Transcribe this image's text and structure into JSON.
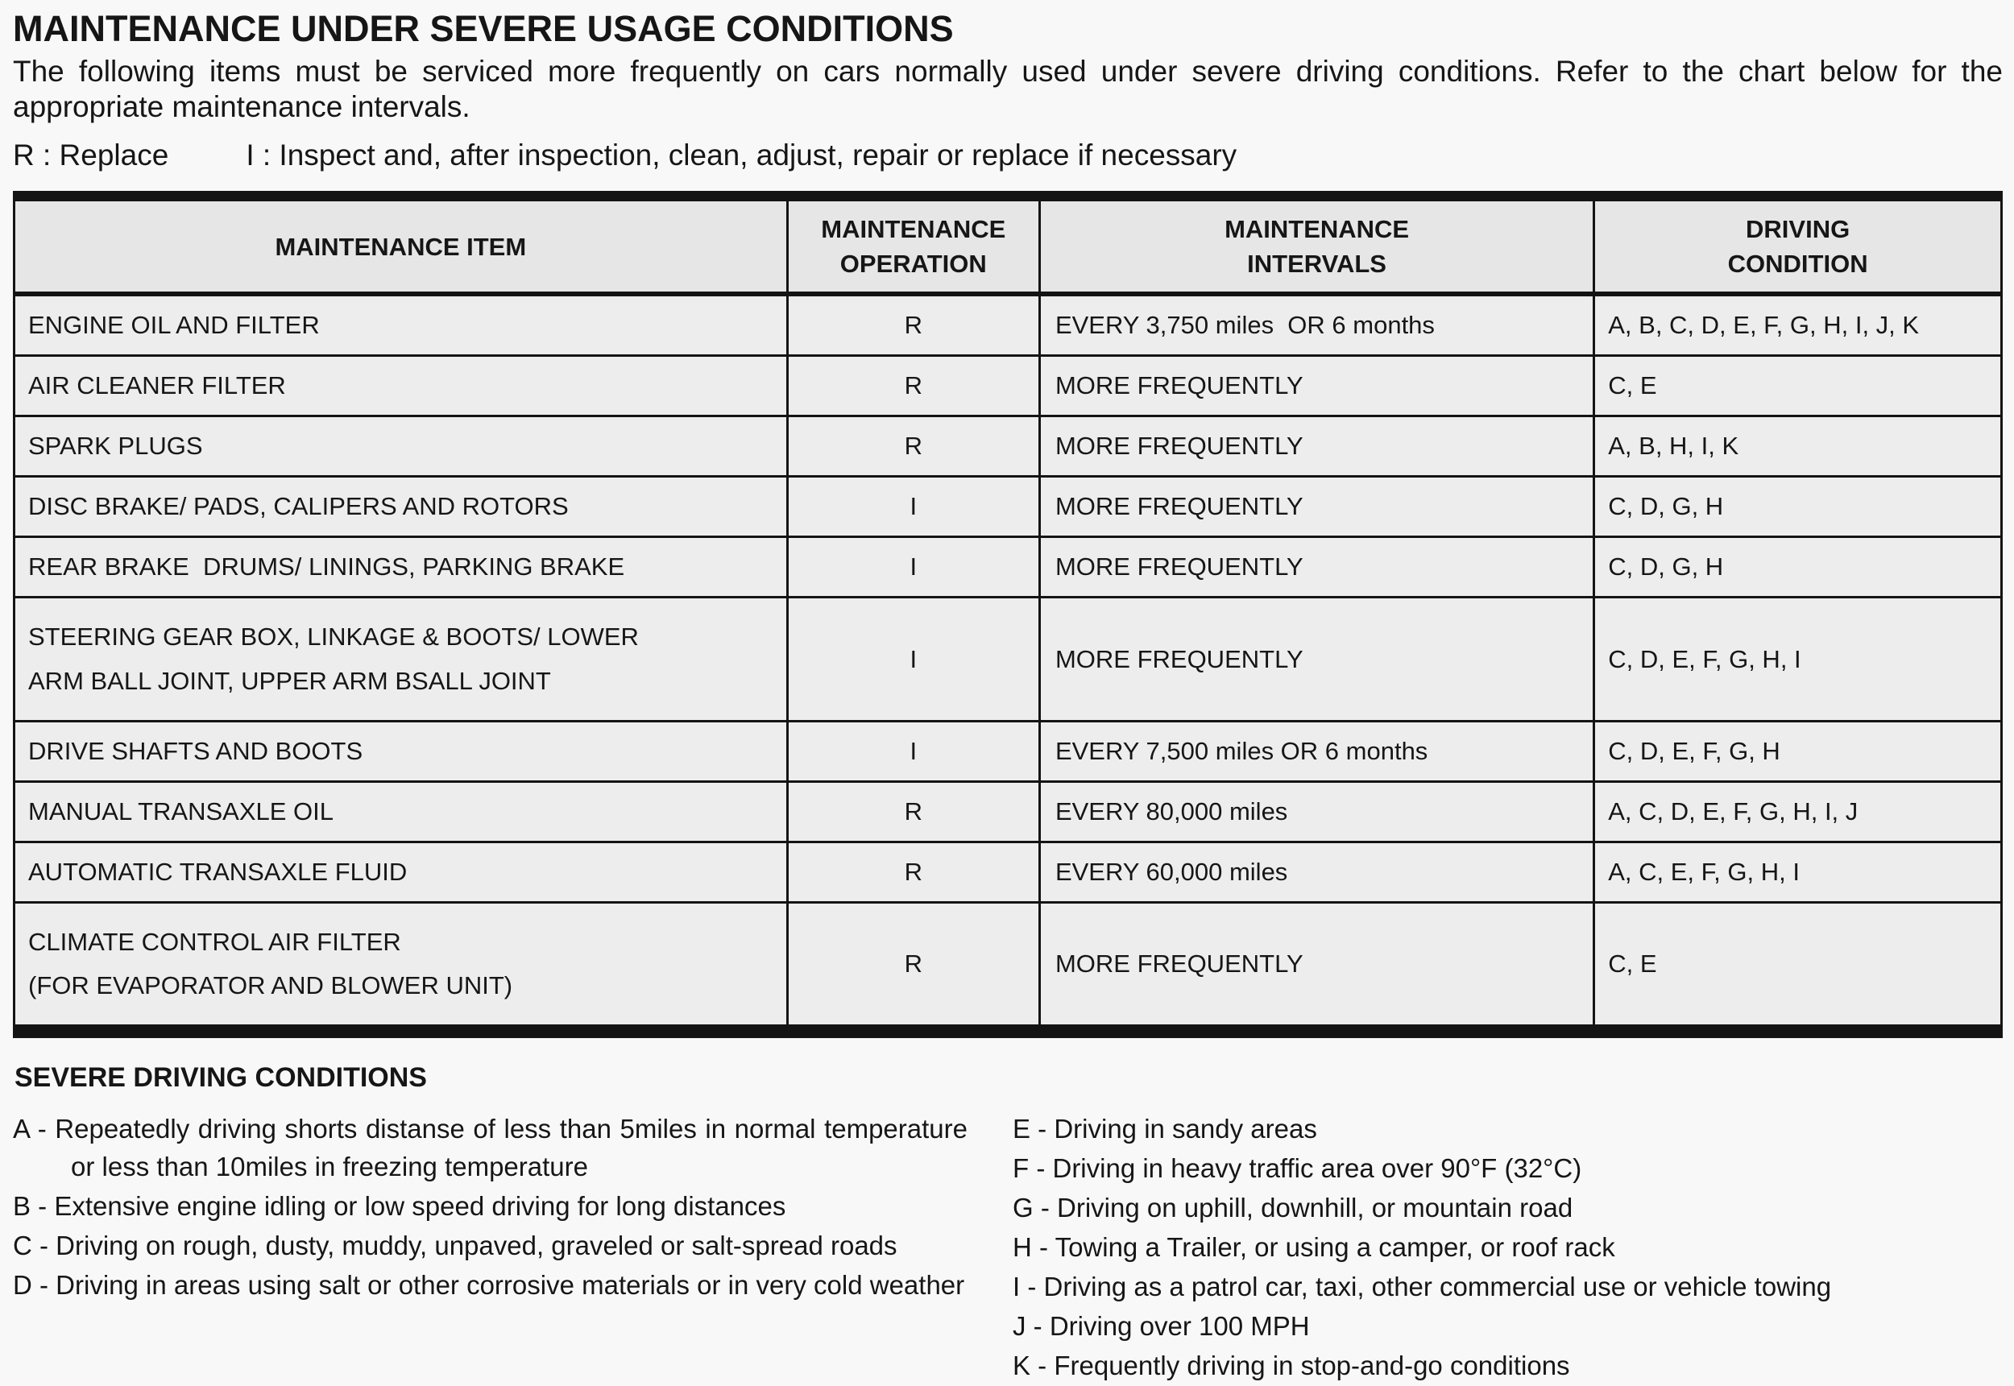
{
  "page": {
    "title": "MAINTENANCE UNDER SEVERE USAGE CONDITIONS",
    "intro": "The following items must be serviced more frequently on cars normally used under severe driving conditions. Refer to the chart below for the appropriate maintenance intervals.",
    "legend": {
      "replace": "R : Replace",
      "inspect": "I : Inspect and, after inspection, clean, adjust, repair or replace if necessary"
    }
  },
  "table": {
    "headers": [
      [
        "MAINTENANCE ITEM"
      ],
      [
        "MAINTENANCE",
        "OPERATION"
      ],
      [
        "MAINTENANCE",
        "INTERVALS"
      ],
      [
        "DRIVING",
        "CONDITION"
      ]
    ],
    "rows": [
      {
        "item": [
          "ENGINE OIL AND FILTER"
        ],
        "operation": "R",
        "interval": "EVERY 3,750 miles  OR 6 months",
        "conditions": "A, B, C, D, E, F, G, H, I, J, K"
      },
      {
        "item": [
          "AIR CLEANER FILTER"
        ],
        "operation": "R",
        "interval": "MORE FREQUENTLY",
        "conditions": "C, E"
      },
      {
        "item": [
          "SPARK PLUGS"
        ],
        "operation": "R",
        "interval": "MORE FREQUENTLY",
        "conditions": "A, B, H, I, K"
      },
      {
        "item": [
          "DISC BRAKE/ PADS, CALIPERS AND ROTORS"
        ],
        "operation": "I",
        "interval": "MORE FREQUENTLY",
        "conditions": "C, D, G, H"
      },
      {
        "item": [
          "REAR BRAKE  DRUMS/ LININGS, PARKING BRAKE"
        ],
        "operation": "I",
        "interval": "MORE FREQUENTLY",
        "conditions": "C, D, G, H"
      },
      {
        "item": [
          "STEERING GEAR BOX, LINKAGE & BOOTS/ LOWER",
          "ARM BALL JOINT, UPPER ARM BSALL JOINT"
        ],
        "operation": "I",
        "interval": "MORE FREQUENTLY",
        "conditions": "C, D, E, F, G, H, I"
      },
      {
        "item": [
          "DRIVE SHAFTS AND BOOTS"
        ],
        "operation": "I",
        "interval": "EVERY 7,500 miles OR 6 months",
        "conditions": "C, D, E, F, G, H"
      },
      {
        "item": [
          "MANUAL TRANSAXLE OIL"
        ],
        "operation": "R",
        "interval": "EVERY 80,000 miles",
        "conditions": "A, C, D, E, F, G, H, I, J"
      },
      {
        "item": [
          "AUTOMATIC TRANSAXLE FLUID"
        ],
        "operation": "R",
        "interval": "EVERY 60,000 miles",
        "conditions": "A, C, E, F, G, H, I"
      },
      {
        "item": [
          "CLIMATE CONTROL AIR FILTER",
          "(FOR EVAPORATOR AND BLOWER UNIT)"
        ],
        "operation": "R",
        "interval": "MORE FREQUENTLY",
        "conditions": "C, E"
      }
    ]
  },
  "severe_conditions": {
    "heading": "SEVERE DRIVING CONDITIONS",
    "left": [
      {
        "key": "A",
        "text": "Repeatedly driving shorts distanse of less than 5miles in normal temperature or less than 10miles in freezing temperature"
      },
      {
        "key": "B",
        "text": "Extensive engine idling or low speed driving for long distances"
      },
      {
        "key": "C",
        "text": "Driving on rough, dusty, muddy, unpaved, graveled or salt-spread roads"
      },
      {
        "key": "D",
        "text": "Driving in areas using salt or other corrosive materials or in very cold weather"
      }
    ],
    "right": [
      {
        "key": "E",
        "text": "Driving in sandy areas"
      },
      {
        "key": "F",
        "text": "Driving in heavy traffic area over 90°F (32°C)"
      },
      {
        "key": "G",
        "text": "Driving on uphill, downhill, or mountain road"
      },
      {
        "key": "H",
        "text": "Towing a Trailer, or using a camper, or roof rack"
      },
      {
        "key": "I",
        "text": "Driving as a patrol car, taxi, other commercial use or vehicle towing"
      },
      {
        "key": "J",
        "text": "Driving over 100 MPH"
      },
      {
        "key": "K",
        "text": "Frequently driving in stop-and-go conditions"
      }
    ]
  },
  "colors": {
    "page_bg": "#f8f8f8",
    "cell_bg": "#ededed",
    "header_bg": "#e6e6e6",
    "border": "#141414",
    "text": "#161616"
  }
}
